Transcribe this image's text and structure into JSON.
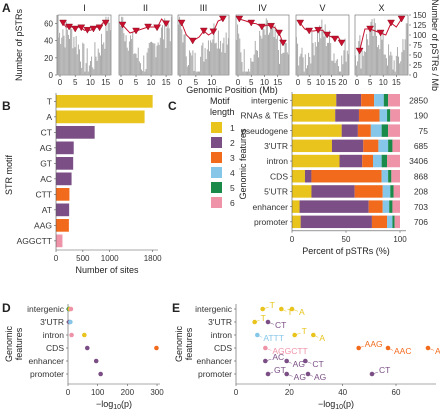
{
  "chart_data": [
    {
      "panel": "A",
      "type": "bar+line",
      "chromosomes": [
        "I",
        "II",
        "III",
        "IV",
        "V",
        "X"
      ],
      "ylabel_left": "Number of pSTRs",
      "ylabel_right": "Number of pSTRs / Mb",
      "xlabel": "Genomic Position (Mb)",
      "ylim_left": [
        0,
        70
      ],
      "yticks_left": [
        "0",
        "20",
        "40",
        "60"
      ],
      "ylim_right": [
        0,
        150
      ],
      "yticks_right": [
        "0",
        "25",
        "50",
        "75",
        "100",
        "125",
        "150"
      ],
      "panels": [
        {
          "name": "I",
          "len": 15.1,
          "ticks": [
            "0",
            "5",
            "10",
            "15"
          ],
          "line_x": [
            1,
            2,
            3,
            4,
            5,
            6,
            7,
            8,
            9,
            10,
            11,
            12,
            13,
            14,
            15
          ],
          "line_y": [
            130,
            120,
            120,
            120,
            115,
            120,
            118,
            112,
            112,
            112,
            115,
            120,
            118,
            130,
            130
          ]
        },
        {
          "name": "II",
          "len": 15.3,
          "ticks": [
            "0",
            "5",
            "10",
            "15"
          ],
          "line_x": [
            0.5,
            3,
            5,
            7,
            9,
            11,
            12,
            13.5,
            15
          ],
          "line_y": [
            125,
            105,
            110,
            115,
            120,
            120,
            118,
            140,
            128
          ]
        },
        {
          "name": "III",
          "len": 13.8,
          "ticks": [
            "0",
            "5",
            "10"
          ],
          "line_x": [
            0.5,
            2,
            4,
            6,
            7.5,
            9,
            10.5,
            12,
            13.5
          ],
          "line_y": [
            130,
            100,
            85,
            95,
            110,
            100,
            108,
            135,
            140
          ]
        },
        {
          "name": "IV",
          "len": 17.5,
          "ticks": [
            "0",
            "5",
            "10",
            "15"
          ],
          "line_x": [
            0.5,
            3,
            5,
            7,
            9,
            11,
            12.5,
            14,
            15.5,
            17
          ],
          "line_y": [
            140,
            135,
            130,
            128,
            120,
            125,
            122,
            118,
            105,
            80
          ]
        },
        {
          "name": "V",
          "len": 20.9,
          "ticks": [
            "0",
            "5",
            "10",
            "15",
            "20"
          ],
          "line_x": [
            1,
            3,
            5,
            7,
            9,
            11,
            13,
            15,
            16.5,
            18,
            19.5
          ],
          "line_y": [
            130,
            115,
            110,
            110,
            112,
            112,
            100,
            95,
            90,
            95,
            80
          ]
        },
        {
          "name": "X",
          "len": 17.7,
          "ticks": [
            "0",
            "5",
            "10",
            "15"
          ],
          "line_x": [
            1,
            3,
            5,
            7,
            9,
            11,
            13,
            15,
            17
          ],
          "line_y": [
            60,
            115,
            115,
            110,
            105,
            100,
            130,
            120,
            140
          ]
        }
      ]
    },
    {
      "panel": "B",
      "type": "bar",
      "orientation": "horizontal",
      "ylabel": "STR motif",
      "xlabel": "Number of sites",
      "categories": [
        "T",
        "A",
        "CT",
        "AG",
        "GT",
        "AC",
        "CTT",
        "AT",
        "AAG",
        "AGGCTT"
      ],
      "values": [
        1800,
        1650,
        720,
        330,
        320,
        290,
        250,
        245,
        240,
        120
      ],
      "motif_length": [
        1,
        1,
        2,
        2,
        2,
        2,
        3,
        2,
        3,
        6
      ],
      "xlim": [
        0,
        1900
      ],
      "xticks": [
        "0",
        "500",
        "1000",
        "1800"
      ]
    },
    {
      "panel": "C",
      "type": "bar",
      "orientation": "horizontal-stacked-percent",
      "ylabel": "Genomic features",
      "xlabel": "Percent of pSTRs (%)",
      "legend_title": "Motif length",
      "legend": [
        "1",
        "2",
        "3",
        "4",
        "5",
        "6"
      ],
      "categories": [
        "intergenic",
        "RNAs & TEs",
        "pseudogene",
        "3'UTR",
        "intron",
        "CDS",
        "5'UTR",
        "enhancer",
        "promoter"
      ],
      "counts": [
        "2850",
        "190",
        "75",
        "685",
        "3406",
        "868",
        "208",
        "703",
        "706"
      ],
      "series": [
        {
          "name": "1",
          "values": [
            41,
            40,
            46,
            37,
            44,
            12,
            18,
            7,
            8
          ]
        },
        {
          "name": "2",
          "values": [
            23,
            22,
            15,
            29,
            21,
            6,
            40,
            64,
            66
          ]
        },
        {
          "name": "3",
          "values": [
            12,
            19,
            12,
            14,
            10,
            65,
            26,
            13,
            14
          ]
        },
        {
          "name": "4",
          "values": [
            9,
            7,
            10,
            9,
            8,
            6,
            7,
            6,
            5
          ]
        },
        {
          "name": "5",
          "values": [
            4,
            3,
            6,
            4,
            5,
            3,
            3,
            3,
            2
          ]
        },
        {
          "name": "6",
          "values": [
            11,
            9,
            11,
            7,
            12,
            8,
            6,
            7,
            5
          ]
        }
      ],
      "xticks": [
        "0",
        "50",
        "100"
      ]
    },
    {
      "panel": "D",
      "type": "scatter",
      "ylabel": "Genomic features",
      "xlabel": "-log10(p)",
      "categories": [
        "intergenic",
        "3'UTR",
        "intron",
        "CDS",
        "enhancer",
        "promoter"
      ],
      "points": [
        {
          "cat": "intergenic",
          "x": 3,
          "motif_length": 5
        },
        {
          "cat": "intergenic",
          "x": 6,
          "motif_length": 1
        },
        {
          "cat": "intergenic",
          "x": 10,
          "motif_length": 6
        },
        {
          "cat": "3'UTR",
          "x": 4,
          "motif_length": 2
        },
        {
          "cat": "3'UTR",
          "x": 8,
          "motif_length": 4
        },
        {
          "cat": "intron",
          "x": 55,
          "motif_length": 1
        },
        {
          "cat": "intron",
          "x": 12,
          "motif_length": 6
        },
        {
          "cat": "CDS",
          "x": 298,
          "motif_length": 3
        },
        {
          "cat": "CDS",
          "x": 65,
          "motif_length": 2
        },
        {
          "cat": "enhancer",
          "x": 95,
          "motif_length": 2
        },
        {
          "cat": "promoter",
          "x": 110,
          "motif_length": 2
        }
      ],
      "xticks": [
        "0",
        "100",
        "200",
        "300"
      ]
    },
    {
      "panel": "E",
      "type": "scatter",
      "ylabel": "Genomic features",
      "xlabel": "-log10(p)",
      "categories": [
        "intergenic",
        "3'UTR",
        "intron",
        "CDS",
        "enhancer",
        "promoter"
      ],
      "points": [
        {
          "cat": "intergenic",
          "x": 10,
          "motif_length": 1,
          "label": "T"
        },
        {
          "cat": "intergenic",
          "x": 17,
          "motif_length": 1,
          "label": "T"
        },
        {
          "cat": "intergenic",
          "x": 21,
          "motif_length": 1,
          "label": "A"
        },
        {
          "cat": "3'UTR",
          "x": 7,
          "motif_length": 1,
          "label": "T"
        },
        {
          "cat": "3'UTR",
          "x": 12,
          "motif_length": 2,
          "label": "CT"
        },
        {
          "cat": "intron",
          "x": 8,
          "motif_length": 4,
          "label": "ATTT"
        },
        {
          "cat": "intron",
          "x": 22,
          "motif_length": 1,
          "label": "T"
        },
        {
          "cat": "intron",
          "x": 29,
          "motif_length": 1,
          "label": "A"
        },
        {
          "cat": "CDS",
          "x": 11,
          "motif_length": 6,
          "label": "AGGCTT"
        },
        {
          "cat": "CDS",
          "x": 46,
          "motif_length": 3,
          "label": "AAG"
        },
        {
          "cat": "CDS",
          "x": 72,
          "motif_length": 3,
          "label": "ACC"
        },
        {
          "cat": "CDS",
          "x": 57,
          "motif_length": 3,
          "label": "AAC"
        },
        {
          "cat": "enhancer",
          "x": 11,
          "motif_length": 2,
          "label": "AC"
        },
        {
          "cat": "enhancer",
          "x": 19,
          "motif_length": 2,
          "label": "AG"
        },
        {
          "cat": "enhancer",
          "x": 26,
          "motif_length": 2,
          "label": "CT"
        },
        {
          "cat": "promoter",
          "x": 12,
          "motif_length": 2,
          "label": "GT"
        },
        {
          "cat": "promoter",
          "x": 19,
          "motif_length": 2,
          "label": "AG"
        },
        {
          "cat": "promoter",
          "x": 27,
          "motif_length": 2,
          "label": "AG"
        },
        {
          "cat": "promoter",
          "x": 51,
          "motif_length": 2,
          "label": "CT"
        }
      ],
      "xticks": [
        "0",
        "20",
        "40",
        "60"
      ],
      "xlim": [
        0,
        75
      ]
    }
  ],
  "colors": {
    "motif_1": "#e8c41c",
    "motif_2": "#7b4f85",
    "motif_3": "#f26b1d",
    "motif_4": "#86c6e8",
    "motif_5": "#1a8a4a",
    "motif_6": "#ef93a8",
    "gray_bars": "#a6a6a6",
    "line": "#c8102e"
  }
}
